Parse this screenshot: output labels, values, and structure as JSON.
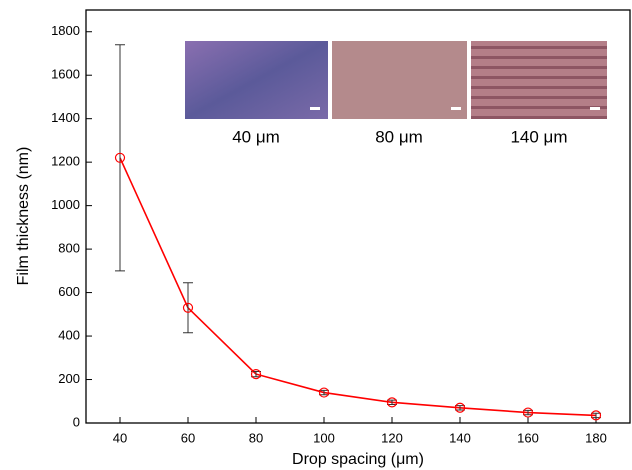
{
  "chart_data": {
    "type": "line",
    "xlabel": "Drop spacing (μm)",
    "ylabel": "Film thickness (nm)",
    "x": [
      40,
      60,
      80,
      100,
      120,
      140,
      160,
      180
    ],
    "series": [
      {
        "color": "#ff0000",
        "marker_color": "#ff0000",
        "values": [
          1220,
          530,
          225,
          140,
          95,
          70,
          48,
          35
        ],
        "errors": [
          520,
          115,
          12,
          10,
          10,
          10,
          10,
          10
        ]
      }
    ],
    "error_color": "#333333",
    "xlim": [
      30,
      190
    ],
    "xticks": [
      40,
      60,
      80,
      100,
      120,
      140,
      160,
      180
    ],
    "ylim": [
      0,
      1900
    ],
    "yticks": [
      0,
      200,
      400,
      600,
      800,
      1000,
      1200,
      1400,
      1600,
      1800
    ],
    "insets": [
      "40 μm",
      "80 μm",
      "140 μm"
    ]
  }
}
